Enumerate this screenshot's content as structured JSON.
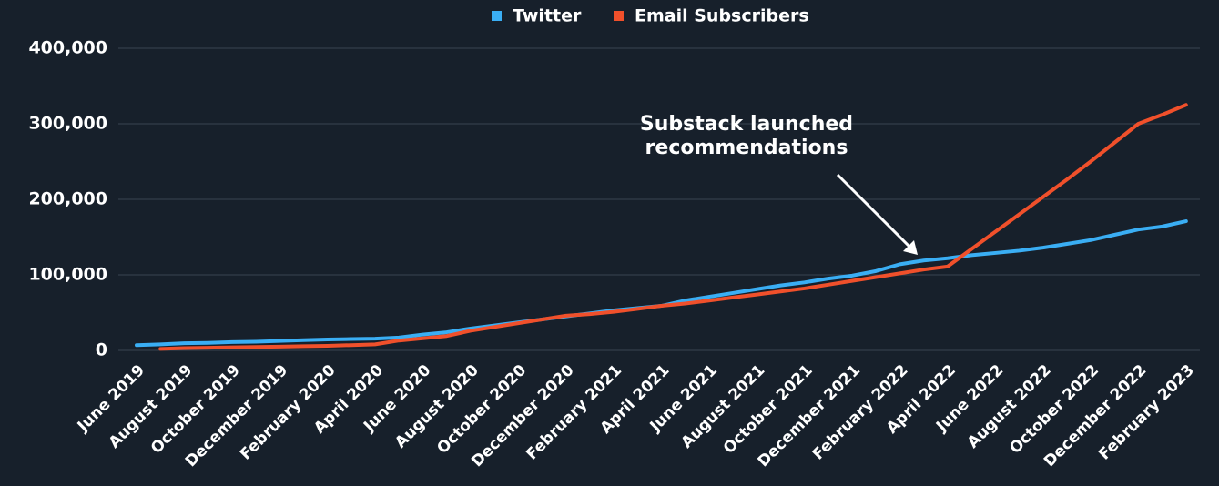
{
  "chart_data": {
    "type": "line",
    "categories": [
      "June 2019",
      null,
      "August 2019",
      null,
      "October 2019",
      null,
      "December 2019",
      null,
      "February 2020",
      null,
      "April 2020",
      null,
      "June 2020",
      null,
      "August 2020",
      null,
      "October 2020",
      null,
      "December 2020",
      null,
      "February 2021",
      null,
      "April 2021",
      null,
      "June 2021",
      null,
      "August 2021",
      null,
      "October 2021",
      null,
      "December 2021",
      null,
      "February 2022",
      null,
      "April 2022",
      null,
      "June 2022",
      null,
      "August 2022",
      null,
      "October 2022",
      null,
      "December 2022",
      null,
      "February 2023"
    ],
    "series": [
      {
        "name": "Twitter",
        "color": "#3aaef4",
        "values": [
          7000,
          8000,
          9500,
          10000,
          11000,
          11500,
          12500,
          13500,
          14500,
          15000,
          15500,
          17000,
          21000,
          24000,
          29000,
          33000,
          37000,
          41000,
          45000,
          49000,
          53000,
          56000,
          59000,
          66000,
          71000,
          76000,
          81000,
          86000,
          90000,
          95000,
          99000,
          105000,
          114000,
          119000,
          122000,
          126000,
          129000,
          132000,
          136000,
          141000,
          146000,
          153000,
          160000,
          164000,
          171000
        ]
      },
      {
        "name": "Email Subscribers",
        "color": "#f0502b",
        "values": [
          null,
          2000,
          3000,
          3500,
          4000,
          4500,
          5000,
          5500,
          6000,
          7000,
          8000,
          13000,
          16000,
          19000,
          26000,
          31000,
          36000,
          41000,
          46000,
          48000,
          51000,
          55000,
          59000,
          62000,
          66000,
          70000,
          74000,
          78000,
          82000,
          87000,
          92000,
          97000,
          102000,
          107000,
          111000,
          134000,
          157000,
          180000,
          203000,
          226000,
          250000,
          275000,
          300000,
          312000,
          325000
        ]
      }
    ],
    "ylim": [
      0,
      400000
    ],
    "yticks": [
      0,
      {
        "value": 100000,
        "label": "100,000"
      },
      {
        "value": 200000,
        "label": "200,000"
      },
      {
        "value": 300000,
        "label": "300,000"
      },
      {
        "value": 400000,
        "label": "400,000"
      }
    ],
    "grid": true,
    "legend": "top",
    "annotation": [
      "Substack launched",
      "recommendations"
    ]
  }
}
